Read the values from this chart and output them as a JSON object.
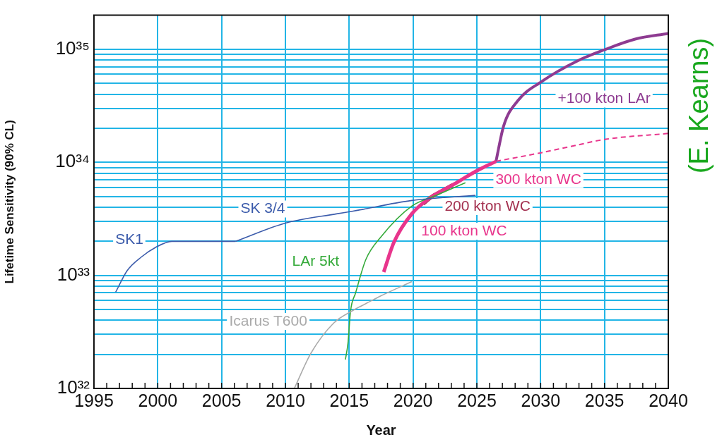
{
  "chart_data": {
    "type": "line",
    "xlabel": "Year",
    "ylabel": "Lifetime Sensitivity (90% CL)",
    "log": "y",
    "grid": true,
    "legend": false,
    "marker": "none",
    "line_style": "solid",
    "xlim": [
      1995,
      2040
    ],
    "xticks": [
      1995,
      {
        "value": 1996,
        "label": null
      },
      {
        "value": 1997,
        "label": null
      },
      {
        "value": 1998,
        "label": null
      },
      {
        "value": 1999,
        "label": null
      },
      2000,
      {
        "value": 2001,
        "label": null
      },
      {
        "value": 2002,
        "label": null
      },
      {
        "value": 2003,
        "label": null
      },
      {
        "value": 2004,
        "label": null
      },
      2005,
      {
        "value": 2006,
        "label": null
      },
      {
        "value": 2007,
        "label": null
      },
      {
        "value": 2008,
        "label": null
      },
      {
        "value": 2009,
        "label": null
      },
      2010,
      {
        "value": 2011,
        "label": null
      },
      {
        "value": 2012,
        "label": null
      },
      {
        "value": 2013,
        "label": null
      },
      {
        "value": 2014,
        "label": null
      },
      2015,
      {
        "value": 2016,
        "label": null
      },
      {
        "value": 2017,
        "label": null
      },
      {
        "value": 2018,
        "label": null
      },
      {
        "value": 2019,
        "label": null
      },
      2020,
      {
        "value": 2021,
        "label": null
      },
      {
        "value": 2022,
        "label": null
      },
      {
        "value": 2023,
        "label": null
      },
      {
        "value": 2024,
        "label": null
      },
      2025,
      {
        "value": 2026,
        "label": null
      },
      {
        "value": 2027,
        "label": null
      },
      {
        "value": 2028,
        "label": null
      },
      {
        "value": 2029,
        "label": null
      },
      2030,
      {
        "value": 2031,
        "label": null
      },
      {
        "value": 2032,
        "label": null
      },
      {
        "value": 2033,
        "label": null
      },
      {
        "value": 2034,
        "label": null
      },
      2035,
      {
        "value": 2036,
        "label": null
      },
      {
        "value": 2037,
        "label": null
      },
      {
        "value": 2038,
        "label": null
      },
      {
        "value": 2039,
        "label": null
      },
      2040
    ],
    "ylim": [
      1e+32,
      2e+35
    ],
    "yticks": [
      {
        "value": 1e+32,
        "label": "10³²"
      },
      {
        "value": 2e+32,
        "label": null
      },
      {
        "value": 3e+32,
        "label": null
      },
      {
        "value": 4e+32,
        "label": null
      },
      {
        "value": 5e+32,
        "label": null
      },
      {
        "value": 6e+32,
        "label": null
      },
      {
        "value": 7e+32,
        "label": null
      },
      {
        "value": 8e+32,
        "label": null
      },
      {
        "value": 9e+32,
        "label": null
      },
      {
        "value": 1e+33,
        "label": "10³³"
      },
      {
        "value": 2e+33,
        "label": null
      },
      {
        "value": 3e+33,
        "label": null
      },
      {
        "value": 4e+33,
        "label": null
      },
      {
        "value": 5e+33,
        "label": null
      },
      {
        "value": 6e+33,
        "label": null
      },
      {
        "value": 7e+33,
        "label": null
      },
      {
        "value": 8e+33,
        "label": null
      },
      {
        "value": 9e+33,
        "label": null
      },
      {
        "value": 1e+34,
        "label": "10³⁴"
      },
      {
        "value": 2e+34,
        "label": null
      },
      {
        "value": 3e+34,
        "label": null
      },
      {
        "value": 4e+34,
        "label": null
      },
      {
        "value": 5e+34,
        "label": null
      },
      {
        "value": 6e+34,
        "label": null
      },
      {
        "value": 7e+34,
        "label": null
      },
      {
        "value": 8e+34,
        "label": null
      },
      {
        "value": 9e+34,
        "label": null
      },
      {
        "value": 1e+35,
        "label": "10³⁵"
      }
    ],
    "series": [
      {
        "name": "SK1",
        "color": "#3b5bab",
        "x": [
          1996.7,
          1997.6,
          1998.7,
          1999.8,
          2001.1,
          2006.1
        ],
        "values": [
          7.1e+32,
          1.1e+33,
          1.45e+33,
          1.76e+33,
          2e+33,
          2e+33
        ]
      },
      {
        "name": "SK 3/4",
        "color": "#3b5bab",
        "x": [
          2006.1,
          2010.0,
          2014.0,
          2015.3,
          2019.9,
          2024.9
        ],
        "values": [
          2e+33,
          2.9e+33,
          3.5e+33,
          3.7e+33,
          4.6e+33,
          5.1e+33
        ]
      },
      {
        "name": "Icarus T600",
        "color": "#aaaaaa",
        "x": [
          2010.7,
          2012.0,
          2013.8,
          2015.3,
          2016.4,
          2017.5,
          2019.9
        ],
        "values": [
          1e+32,
          2.05e+32,
          3.8e+32,
          4.9e+32,
          5.7e+32,
          6.6e+32,
          8.8e+32
        ]
      },
      {
        "name": "LAr 5kt",
        "color": "#35aa3a",
        "x": [
          2014.7,
          2014.9,
          2015.1,
          2015.5,
          2016.3,
          2017.5,
          2019.9,
          2021.8,
          2024.1
        ],
        "values": [
          1.8e+32,
          2.5e+32,
          4.8e+32,
          7e+32,
          1.38e+33,
          2.2e+33,
          4.1e+33,
          5.1e+33,
          6.6e+33
        ]
      },
      {
        "name": "100 kton WC",
        "color": "#e8358c",
        "x": [
          2017.7,
          2018.5,
          2019.9,
          2021.4,
          2023.1,
          2024.9,
          2026.5
        ],
        "values": [
          1.07e+33,
          1.96e+33,
          3.5e+33,
          4.9e+33,
          6.3e+33,
          8.3e+33,
          1.02e+34
        ]
      },
      {
        "name": "200 kton WC",
        "color": "#a3304f",
        "x": [
          2020.8,
          2021.4,
          2022.3,
          2023.1
        ],
        "values": [
          4.3e+33,
          4.9e+33,
          5.6e+33,
          6.3e+33
        ]
      },
      {
        "name": "300 kton WC",
        "color": "#e8358c",
        "line_style": "dashed",
        "x": [
          2026.5,
          2030.1,
          2032.6,
          2035.1,
          2040
        ],
        "values": [
          1.02e+34,
          1.22e+34,
          1.4e+34,
          1.6e+34,
          1.8e+34
        ]
      },
      {
        "name": "+100 kton LAr",
        "color": "#8e3b91",
        "x": [
          2026.5,
          2027.1,
          2028.2,
          2030.1,
          2032.9,
          2035.1,
          2037.4,
          2040
        ],
        "values": [
          1.02e+34,
          2.1e+34,
          3.5e+34,
          5.2e+34,
          7.9e+34,
          1e+35,
          1.23e+35,
          1.38e+35
        ]
      }
    ],
    "annotations": [
      "(E. Kearns)"
    ]
  }
}
